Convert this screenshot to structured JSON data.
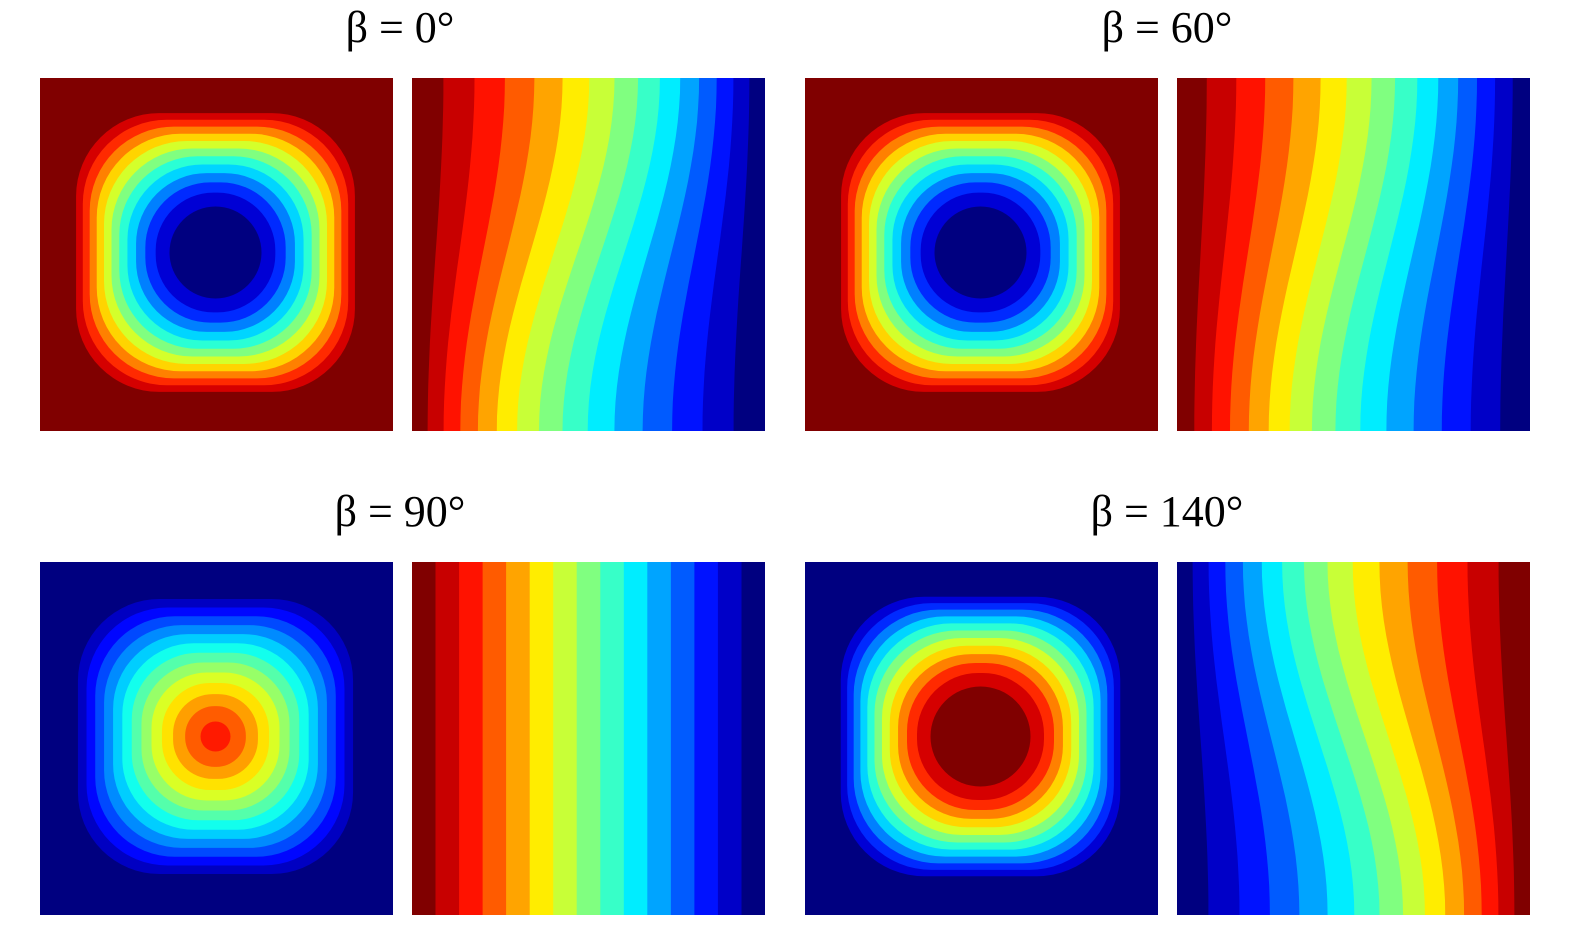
{
  "panels": [
    {
      "title": "β = 0°"
    },
    {
      "title": "β = 60°"
    },
    {
      "title": "β = 90°"
    },
    {
      "title": "β = 140°"
    }
  ]
}
